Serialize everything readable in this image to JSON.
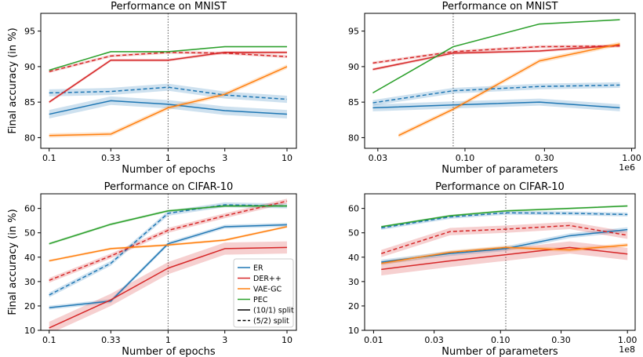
{
  "colors": {
    "ER": "#1f77b4",
    "DER++": "#d62728",
    "VAE-GC": "#ff7f0e",
    "PEC": "#2ca02c"
  },
  "legend": {
    "entries": [
      "ER",
      "DER++",
      "VAE-GC",
      "PEC"
    ],
    "split_solid": "(10/1) split",
    "split_dashed": "(5/2) split",
    "placement": "lower-right of bottom-left panel"
  },
  "chart_data": [
    {
      "type": "line",
      "title": "Performance on MNIST",
      "xlabel": "Number of epochs",
      "ylabel": "Final accuracy (in %)",
      "xscale": "log",
      "xlim": [
        0.085,
        12
      ],
      "ylim": [
        78.5,
        97.5
      ],
      "xticks": [
        0.1,
        0.33,
        1,
        3,
        10
      ],
      "xtick_labels": [
        "0.1",
        "0.33",
        "1",
        "3",
        "10"
      ],
      "yticks": [
        80,
        85,
        90,
        95
      ],
      "vline": 1,
      "series": [
        {
          "name": "ER",
          "split": "(10/1) split",
          "x": [
            0.1,
            0.33,
            1,
            3,
            10
          ],
          "y": [
            83.3,
            85.2,
            84.7,
            83.8,
            83.3
          ],
          "band": 0.6
        },
        {
          "name": "ER",
          "split": "(5/2) split",
          "x": [
            0.1,
            0.33,
            1,
            3,
            10
          ],
          "y": [
            86.3,
            86.5,
            87.1,
            86.0,
            85.4
          ],
          "band": 0.5
        },
        {
          "name": "DER++",
          "split": "(10/1) split",
          "x": [
            0.1,
            0.33,
            1,
            3,
            10
          ],
          "y": [
            85.0,
            90.9,
            90.9,
            92.0,
            92.0
          ],
          "band": 0.2
        },
        {
          "name": "DER++",
          "split": "(5/2) split",
          "x": [
            0.1,
            0.33,
            1,
            3,
            10
          ],
          "y": [
            89.3,
            91.5,
            92.0,
            91.9,
            91.4
          ],
          "band": 0.2
        },
        {
          "name": "VAE-GC",
          "split": "(10/1) split",
          "x": [
            0.1,
            0.33,
            1,
            3,
            10
          ],
          "y": [
            80.3,
            80.5,
            84.2,
            86.1,
            90.0
          ],
          "band": 0.3
        },
        {
          "name": "PEC",
          "split": "(10/1) split",
          "x": [
            0.1,
            0.33,
            1,
            3,
            10
          ],
          "y": [
            89.5,
            92.1,
            92.1,
            92.8,
            92.8
          ],
          "band": 0.1
        }
      ]
    },
    {
      "type": "line",
      "title": "Performance on MNIST",
      "xlabel": "Number of parameters",
      "ylabel": "",
      "xscale": "log",
      "axis_multiplier": "1e6",
      "xlim": [
        0.025,
        1.05
      ],
      "ylim": [
        78.5,
        97.5
      ],
      "xticks": [
        0.03,
        0.1,
        0.3,
        1.0
      ],
      "xtick_labels": [
        "0.03",
        "0.10",
        "0.30",
        "1.00"
      ],
      "yticks": [
        80,
        85,
        90,
        95
      ],
      "vline": 0.085,
      "series": [
        {
          "name": "ER",
          "split": "(10/1) split",
          "x": [
            0.028,
            0.085,
            0.28,
            0.85
          ],
          "y": [
            84.2,
            84.6,
            85.0,
            84.2
          ],
          "band": 0.5
        },
        {
          "name": "ER",
          "split": "(5/2) split",
          "x": [
            0.028,
            0.085,
            0.28,
            0.85
          ],
          "y": [
            84.9,
            86.6,
            87.2,
            87.4
          ],
          "band": 0.4
        },
        {
          "name": "DER++",
          "split": "(10/1) split",
          "x": [
            0.028,
            0.085,
            0.28,
            0.85
          ],
          "y": [
            89.6,
            91.9,
            92.2,
            93.0
          ],
          "band": 0.2
        },
        {
          "name": "DER++",
          "split": "(5/2) split",
          "x": [
            0.028,
            0.085,
            0.28,
            0.85
          ],
          "y": [
            90.5,
            92.1,
            92.8,
            92.9
          ],
          "band": 0.2
        },
        {
          "name": "VAE-GC",
          "split": "(10/1) split",
          "x": [
            0.04,
            0.085,
            0.28,
            0.85
          ],
          "y": [
            80.3,
            84.0,
            90.8,
            93.2
          ],
          "band": 0.3
        },
        {
          "name": "PEC",
          "split": "(10/1) split",
          "x": [
            0.028,
            0.085,
            0.28,
            0.85
          ],
          "y": [
            86.3,
            92.8,
            96.0,
            96.6
          ],
          "band": 0.1
        }
      ]
    },
    {
      "type": "line",
      "title": "Performance on CIFAR-10",
      "xlabel": "Number of epochs",
      "ylabel": "Final accuracy (in %)",
      "xscale": "log",
      "xlim": [
        0.085,
        12
      ],
      "ylim": [
        10,
        66
      ],
      "xticks": [
        0.1,
        0.33,
        1,
        3,
        10
      ],
      "xtick_labels": [
        "0.1",
        "0.33",
        "1",
        "3",
        "10"
      ],
      "yticks": [
        10,
        20,
        30,
        40,
        50,
        60
      ],
      "vline": 1,
      "series": [
        {
          "name": "ER",
          "split": "(10/1) split",
          "x": [
            0.1,
            0.33,
            1,
            3,
            10
          ],
          "y": [
            19.3,
            22.0,
            45.5,
            52.5,
            53.3
          ],
          "band": 0.8
        },
        {
          "name": "ER",
          "split": "(5/2) split",
          "x": [
            0.1,
            0.33,
            1,
            3,
            10
          ],
          "y": [
            24.5,
            37.5,
            58.0,
            61.5,
            61.0
          ],
          "band": 1.0
        },
        {
          "name": "DER++",
          "split": "(10/1) split",
          "x": [
            0.1,
            0.33,
            1,
            3,
            10
          ],
          "y": [
            11.0,
            22.5,
            35.5,
            43.5,
            44.0
          ],
          "band": 2.5
        },
        {
          "name": "DER++",
          "split": "(5/2) split",
          "x": [
            0.1,
            0.33,
            1,
            3,
            10
          ],
          "y": [
            30.5,
            40.5,
            51.0,
            57.0,
            63.0
          ],
          "band": 1.0
        },
        {
          "name": "VAE-GC",
          "split": "(10/1) split",
          "x": [
            0.1,
            0.33,
            1,
            3,
            10
          ],
          "y": [
            38.5,
            43.5,
            45.0,
            47.0,
            52.5
          ],
          "band": 0.5
        },
        {
          "name": "PEC",
          "split": "(10/1) split",
          "x": [
            0.1,
            0.33,
            1,
            3,
            10
          ],
          "y": [
            45.5,
            53.5,
            59.0,
            61.0,
            61.0
          ],
          "band": 0.5
        }
      ]
    },
    {
      "type": "line",
      "title": "Performance on CIFAR-10",
      "xlabel": "Number of parameters",
      "ylabel": "",
      "xscale": "log",
      "axis_multiplier": "1e8",
      "xlim": [
        0.0085,
        1.15
      ],
      "ylim": [
        10,
        66
      ],
      "xticks": [
        0.01,
        0.03,
        0.1,
        0.3,
        1.0
      ],
      "xtick_labels": [
        "0.01",
        "0.03",
        "0.10",
        "0.30",
        "1.00"
      ],
      "yticks": [
        10,
        20,
        30,
        40,
        50,
        60
      ],
      "vline": 0.11,
      "series": [
        {
          "name": "ER",
          "split": "(10/1) split",
          "x": [
            0.0115,
            0.04,
            0.11,
            0.35,
            1.0
          ],
          "y": [
            38.0,
            41.5,
            43.5,
            48.8,
            51.3
          ],
          "band": 1.0
        },
        {
          "name": "ER",
          "split": "(5/2) split",
          "x": [
            0.0115,
            0.04,
            0.11,
            0.35,
            1.0
          ],
          "y": [
            52.0,
            56.5,
            58.2,
            58.0,
            57.5
          ],
          "band": 0.8
        },
        {
          "name": "DER++",
          "split": "(10/1) split",
          "x": [
            0.0115,
            0.04,
            0.11,
            0.35,
            1.0
          ],
          "y": [
            35.0,
            38.5,
            41.0,
            44.0,
            41.3
          ],
          "band": 2.5
        },
        {
          "name": "DER++",
          "split": "(5/2) split",
          "x": [
            0.0115,
            0.04,
            0.11,
            0.35,
            1.0
          ],
          "y": [
            41.5,
            50.5,
            51.5,
            53.0,
            49.0
          ],
          "band": 1.5
        },
        {
          "name": "VAE-GC",
          "split": "(10/1) split",
          "x": [
            0.0115,
            0.04,
            0.11,
            0.35,
            1.0
          ],
          "y": [
            37.5,
            42.0,
            44.0,
            43.0,
            45.0
          ],
          "band": 0.8
        },
        {
          "name": "PEC",
          "split": "(10/1) split",
          "x": [
            0.0115,
            0.04,
            0.11,
            0.35,
            1.0
          ],
          "y": [
            52.5,
            57.0,
            59.0,
            60.0,
            61.0
          ],
          "band": 0.4
        }
      ]
    }
  ]
}
